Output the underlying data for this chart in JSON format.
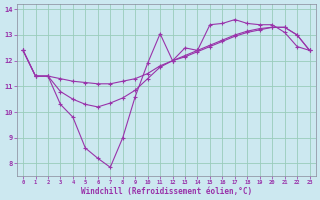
{
  "xlabel": "Windchill (Refroidissement éolien,°C)",
  "xlim": [
    -0.5,
    23.5
  ],
  "ylim": [
    7.5,
    14.2
  ],
  "yticks": [
    8,
    9,
    10,
    11,
    12,
    13,
    14
  ],
  "xticks": [
    0,
    1,
    2,
    3,
    4,
    5,
    6,
    7,
    8,
    9,
    10,
    11,
    12,
    13,
    14,
    15,
    16,
    17,
    18,
    19,
    20,
    21,
    22,
    23
  ],
  "bg_color": "#cce8f0",
  "line_color": "#9933aa",
  "grid_color": "#99ccbb",
  "series1_x": [
    0,
    1,
    2,
    3,
    4,
    5,
    6,
    7,
    8,
    9,
    10,
    11,
    12,
    13,
    14,
    15,
    16,
    17,
    18,
    19,
    20,
    21,
    22,
    23
  ],
  "series1_y": [
    12.4,
    11.4,
    11.4,
    10.3,
    9.8,
    8.6,
    8.2,
    7.85,
    9.0,
    10.6,
    11.9,
    13.05,
    12.0,
    12.5,
    12.4,
    13.4,
    13.45,
    13.6,
    13.45,
    13.4,
    13.4,
    13.1,
    12.55,
    12.4
  ],
  "series2_x": [
    0,
    1,
    2,
    3,
    4,
    5,
    6,
    7,
    8,
    9,
    10,
    11,
    12,
    13,
    14,
    15,
    16,
    17,
    18,
    19,
    20,
    21,
    22,
    23
  ],
  "series2_y": [
    12.4,
    11.4,
    11.4,
    10.8,
    10.5,
    10.3,
    10.2,
    10.35,
    10.55,
    10.85,
    11.3,
    11.75,
    12.0,
    12.2,
    12.4,
    12.6,
    12.8,
    13.0,
    13.15,
    13.25,
    13.3,
    13.3,
    13.0,
    12.4
  ],
  "series3_x": [
    0,
    1,
    2,
    3,
    4,
    5,
    6,
    7,
    8,
    9,
    10,
    11,
    12,
    13,
    14,
    15,
    16,
    17,
    18,
    19,
    20,
    21,
    22,
    23
  ],
  "series3_y": [
    12.4,
    11.4,
    11.4,
    11.3,
    11.2,
    11.15,
    11.1,
    11.1,
    11.2,
    11.3,
    11.5,
    11.8,
    12.0,
    12.15,
    12.35,
    12.55,
    12.75,
    12.95,
    13.1,
    13.2,
    13.3,
    13.3,
    13.0,
    12.4
  ]
}
